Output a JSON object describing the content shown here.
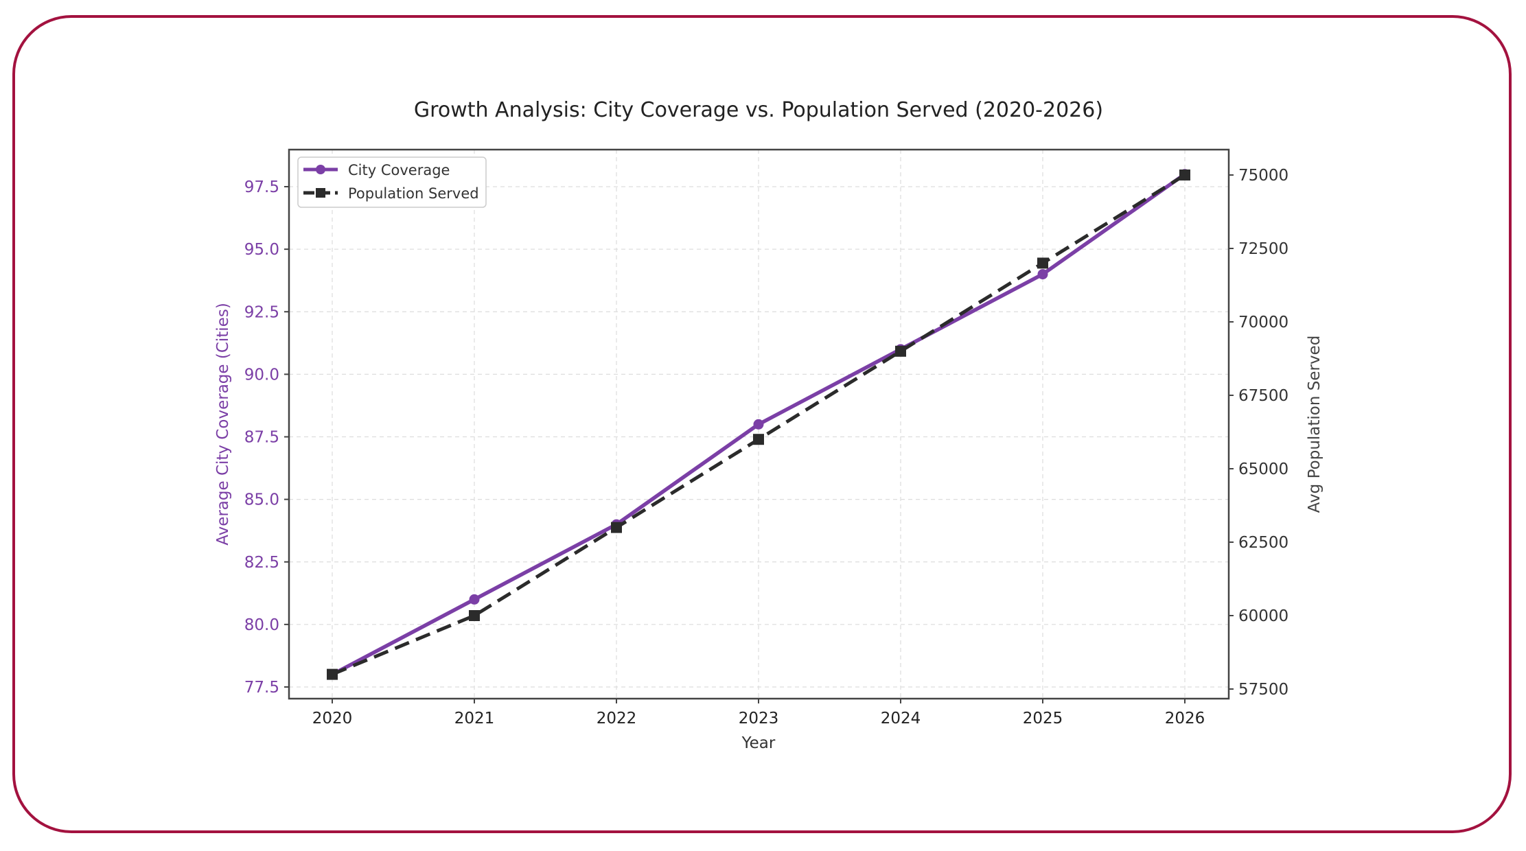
{
  "chart_data": {
    "type": "line",
    "title": "Growth Analysis: City Coverage vs. Population Served (2020-2026)",
    "xlabel": "Year",
    "ylabel_left": "Average City Coverage (Cities)",
    "ylabel_right": "Avg Population Served",
    "x": [
      2020,
      2021,
      2022,
      2023,
      2024,
      2025,
      2026
    ],
    "x_ticks": [
      "2020",
      "2021",
      "2022",
      "2023",
      "2024",
      "2025",
      "2026"
    ],
    "ylim_left": [
      77,
      98.5
    ],
    "y_ticks_left": [
      "77.5",
      "80.0",
      "82.5",
      "85.0",
      "87.5",
      "90.0",
      "92.5",
      "95.0",
      "97.5"
    ],
    "ylim_right": [
      57000,
      75400
    ],
    "y_ticks_right": [
      "57500",
      "60000",
      "62500",
      "65000",
      "67500",
      "70000",
      "72500",
      "75000"
    ],
    "grid": true,
    "legend_placement": "top-left",
    "series": [
      {
        "name": "City Coverage",
        "axis": "left",
        "values": [
          78,
          81,
          84,
          88,
          91,
          94,
          98
        ],
        "color": "#7b3fa6",
        "style": "solid",
        "marker": "circle"
      },
      {
        "name": "Population Served",
        "axis": "right",
        "values": [
          58000,
          60000,
          63000,
          66000,
          69000,
          72000,
          75000
        ],
        "color": "#2b2b2b",
        "style": "dashed",
        "marker": "square"
      }
    ],
    "left_axis_color": "#7b3fa6",
    "right_axis_color": "#444444"
  },
  "frame_color": "#a3123f"
}
